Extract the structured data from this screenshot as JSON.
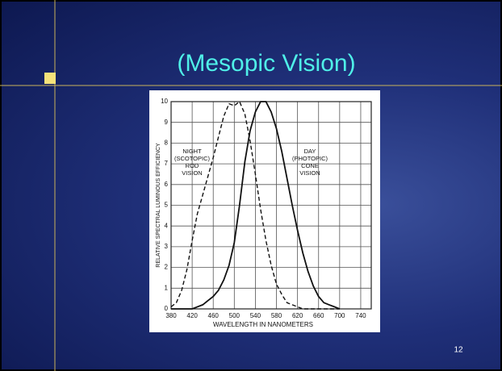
{
  "slide": {
    "title": "(Mesopic Vision)",
    "number": "12"
  },
  "chart_data": {
    "type": "line",
    "x_label": "WAVELENGTH IN NANOMETERS",
    "y_label": "RELATIVE SPECTRAL LUMINOUS EFFICIENCY",
    "annotations": [
      [
        "NIGHT",
        "(SCOTOPIC)",
        "ROD",
        "VISION"
      ],
      [
        "DAY",
        "(PHOTOPIC)",
        "CONE",
        "VISION"
      ]
    ],
    "x": [
      380,
      390,
      400,
      410,
      420,
      430,
      440,
      450,
      460,
      470,
      480,
      490,
      500,
      510,
      520,
      530,
      540,
      550,
      560,
      570,
      580,
      590,
      600,
      610,
      620,
      630,
      640,
      650,
      660,
      670,
      680,
      690,
      700
    ],
    "series": [
      {
        "color": "#111111",
        "dashed": true,
        "values": [
          0.1,
          0.3,
          0.9,
          1.9,
          3.3,
          4.6,
          5.5,
          6.4,
          7.3,
          8.3,
          9.3,
          9.9,
          9.8,
          10,
          9.4,
          8.1,
          6.5,
          4.8,
          3.3,
          2.1,
          1.2,
          0.7,
          0.3,
          0.2,
          0.1,
          0,
          0,
          0,
          0,
          0,
          0,
          0,
          0
        ]
      },
      {
        "color": "#111111",
        "dashed": false,
        "values": [
          0,
          0,
          0,
          0,
          0,
          0.1,
          0.2,
          0.4,
          0.6,
          0.9,
          1.4,
          2.1,
          3.2,
          5.0,
          7.1,
          8.6,
          9.5,
          10,
          10,
          9.5,
          8.7,
          7.6,
          6.3,
          5.0,
          3.8,
          2.7,
          1.8,
          1.1,
          0.6,
          0.3,
          0.2,
          0.1,
          0
        ]
      }
    ],
    "xlim": [
      380,
      760
    ],
    "xticks": [
      380,
      420,
      460,
      500,
      540,
      580,
      620,
      660,
      700,
      740
    ],
    "ylim": [
      0,
      10
    ],
    "yticks": [
      0,
      1,
      2,
      3,
      4,
      5,
      6,
      7,
      8,
      9,
      10
    ],
    "grid": true
  }
}
